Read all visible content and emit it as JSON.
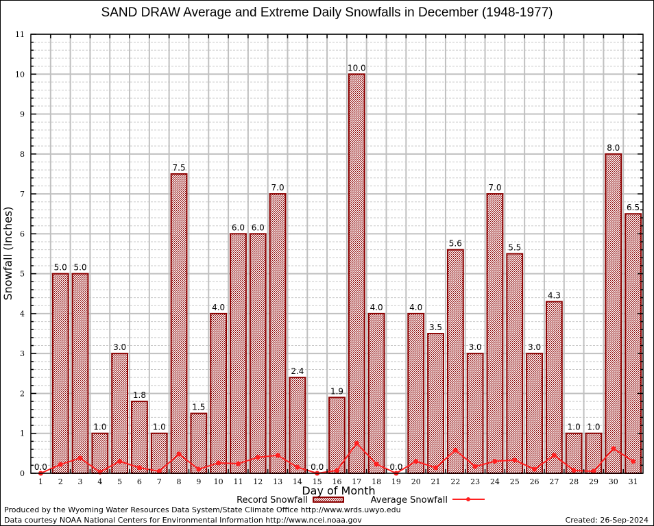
{
  "chart_data": {
    "type": "bar",
    "title": "SAND DRAW Average and Extreme Daily Snowfalls in December (1948-1977)",
    "xlabel": "Day of Month",
    "ylabel": "Snowfall (Inches)",
    "ylim": [
      0,
      11
    ],
    "yticks": [
      "0",
      "1",
      "2",
      "3",
      "4",
      "5",
      "6",
      "7",
      "8",
      "9",
      "10",
      "11"
    ],
    "categories": [
      "1",
      "2",
      "3",
      "4",
      "5",
      "6",
      "7",
      "8",
      "9",
      "10",
      "11",
      "12",
      "13",
      "14",
      "15",
      "16",
      "17",
      "18",
      "19",
      "20",
      "21",
      "22",
      "23",
      "24",
      "25",
      "26",
      "27",
      "28",
      "29",
      "30",
      "31"
    ],
    "grid": true,
    "legend_position": "bottom",
    "series": [
      {
        "name": "Record Snowfall",
        "type": "bar",
        "values": [
          0.0,
          5.0,
          5.0,
          1.0,
          3.0,
          1.8,
          1.0,
          7.5,
          1.5,
          4.0,
          6.0,
          6.0,
          7.0,
          2.4,
          0.0,
          1.9,
          10.0,
          4.0,
          0.0,
          4.0,
          3.5,
          5.6,
          3.0,
          7.0,
          5.5,
          3.0,
          4.3,
          1.0,
          1.0,
          8.0,
          6.5
        ],
        "labels": [
          "0.0",
          "5.0",
          "5.0",
          "1.0",
          "3.0",
          "1.8",
          "1.0",
          "7.5",
          "1.5",
          "4.0",
          "6.0",
          "6.0",
          "7.0",
          "2.4",
          "0.0",
          "1.9",
          "10.0",
          "4.0",
          "0.0",
          "4.0",
          "3.5",
          "5.6",
          "3.0",
          "7.0",
          "5.5",
          "3.0",
          "4.3",
          "1.0",
          "1.0",
          "8.0",
          "6.5"
        ],
        "color": "#8b0000"
      },
      {
        "name": "Average Snowfall",
        "type": "line",
        "values": [
          0.0,
          0.22,
          0.38,
          0.03,
          0.3,
          0.14,
          0.05,
          0.48,
          0.1,
          0.26,
          0.24,
          0.4,
          0.45,
          0.15,
          0.0,
          0.07,
          0.75,
          0.23,
          0.0,
          0.3,
          0.14,
          0.58,
          0.17,
          0.3,
          0.33,
          0.1,
          0.45,
          0.07,
          0.05,
          0.62,
          0.3
        ],
        "color": "#ff2020"
      }
    ]
  },
  "footer": {
    "credit1": "Produced by the Wyoming Water Resources Data System/State Climate Office http://www.wrds.uwyo.edu",
    "credit2": "Data courtesy NOAA National Centers for Environmental Information http://www.ncei.noaa.gov",
    "created": "Created: 26-Sep-2024"
  },
  "colors": {
    "bar_stroke": "#8b0000",
    "bar_fill_a": "#8b0000",
    "bar_fill_b": "#ffffff",
    "line": "#ff2020",
    "grid_major": "#c0c0c0",
    "grid_minor": "#c8c8c8"
  }
}
